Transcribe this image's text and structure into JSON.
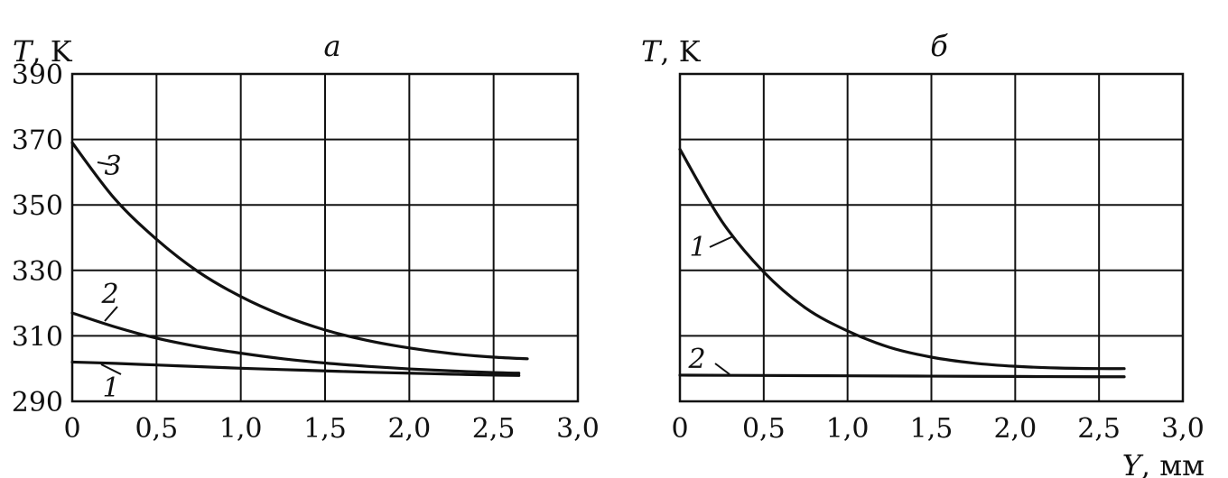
{
  "chart_data": [
    {
      "type": "line",
      "title": "а",
      "ylabel_symbol": "T",
      "ylabel_unit": ", K",
      "xlabel_symbol": "",
      "xlabel_unit": "",
      "xlim": [
        0,
        3.0
      ],
      "ylim": [
        290,
        390
      ],
      "x_ticks": [
        0,
        0.5,
        1.0,
        1.5,
        2.0,
        2.5,
        3.0
      ],
      "x_tick_labels": [
        "0",
        "0,5",
        "1,0",
        "1,5",
        "2,0",
        "2,5",
        "3,0"
      ],
      "y_ticks": [
        290,
        310,
        330,
        350,
        370,
        390
      ],
      "y_tick_labels": [
        "290",
        "310",
        "330",
        "350",
        "370",
        "390"
      ],
      "grid": true,
      "series": [
        {
          "name": "1",
          "x": [
            0,
            0.25,
            0.5,
            0.75,
            1.0,
            1.25,
            1.5,
            1.75,
            2.0,
            2.25,
            2.5,
            2.65
          ],
          "y": [
            302,
            301.6,
            301.1,
            300.6,
            300.1,
            299.7,
            299.3,
            298.9,
            298.6,
            298.3,
            298.0,
            297.9
          ]
        },
        {
          "name": "2",
          "x": [
            0,
            0.25,
            0.5,
            0.75,
            1.0,
            1.25,
            1.5,
            1.75,
            2.0,
            2.25,
            2.5,
            2.65
          ],
          "y": [
            317,
            312.8,
            309.3,
            306.7,
            304.7,
            303.0,
            301.7,
            300.7,
            299.9,
            299.3,
            298.8,
            298.6
          ]
        },
        {
          "name": "3",
          "x": [
            0,
            0.25,
            0.5,
            0.75,
            1.0,
            1.25,
            1.5,
            1.75,
            2.0,
            2.25,
            2.5,
            2.7
          ],
          "y": [
            369,
            352,
            339.5,
            329.5,
            322,
            316.2,
            311.8,
            308.6,
            306.3,
            304.6,
            303.5,
            303.0
          ]
        }
      ]
    },
    {
      "type": "line",
      "title": "б",
      "ylabel_symbol": "T",
      "ylabel_unit": ", K",
      "xlabel_symbol": "Y",
      "xlabel_unit": ", мм",
      "xlim": [
        0,
        3.0
      ],
      "ylim": [
        290,
        390
      ],
      "x_ticks": [
        0,
        0.5,
        1.0,
        1.5,
        2.0,
        2.5,
        3.0
      ],
      "x_tick_labels": [
        "0",
        "0,5",
        "1,0",
        "1,5",
        "2,0",
        "2,5",
        "3,0"
      ],
      "y_ticks": [
        290,
        310,
        330,
        350,
        370,
        390
      ],
      "y_tick_labels": [],
      "grid": true,
      "series": [
        {
          "name": "1",
          "x": [
            0,
            0.25,
            0.5,
            0.75,
            1.0,
            1.25,
            1.5,
            1.75,
            2.0,
            2.25,
            2.5,
            2.65
          ],
          "y": [
            367,
            345,
            329.5,
            318.5,
            311.5,
            306.5,
            303.5,
            301.7,
            300.7,
            300.2,
            300.0,
            300.0
          ]
        },
        {
          "name": "2",
          "x": [
            0,
            0.5,
            1.0,
            1.5,
            2.0,
            2.5,
            2.65
          ],
          "y": [
            298,
            297.9,
            297.8,
            297.7,
            297.6,
            297.5,
            297.5
          ]
        }
      ]
    }
  ]
}
